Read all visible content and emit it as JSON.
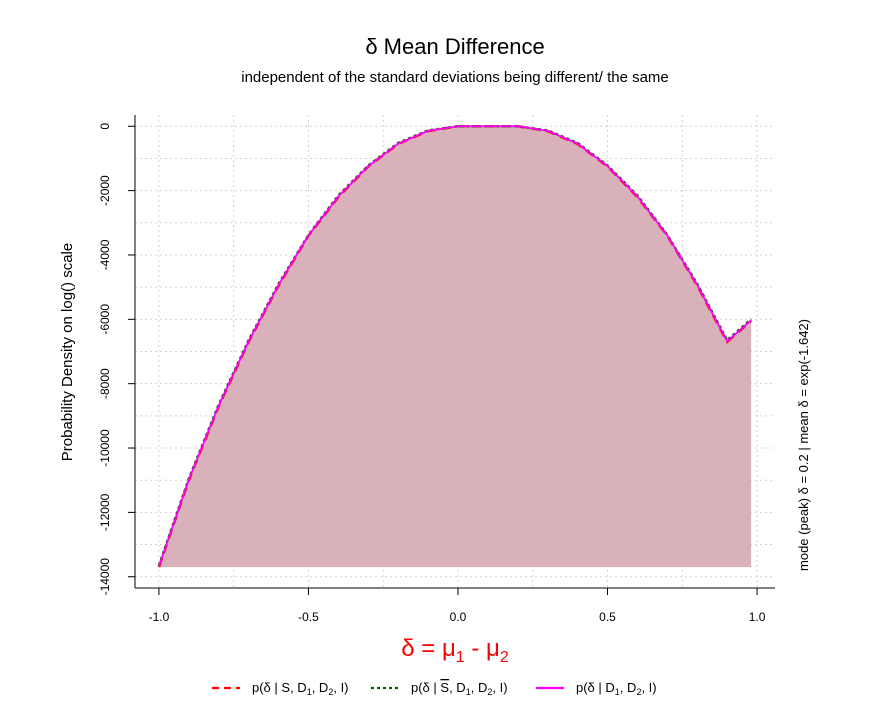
{
  "chart_data": {
    "type": "area",
    "title": "δ Mean Difference",
    "subtitle": "independent of the standard deviations being different/ the same",
    "ylabel": "Probability Density on log() scale",
    "xlabel": {
      "main": "δ = μ",
      "sub1": "1",
      "mid": " - μ",
      "sub2": "2"
    },
    "side_note": "mode (peak) δ = 0.2  |  mean δ = exp(-1.642)",
    "xlim": [
      -1.08,
      1.06
    ],
    "ylim": [
      -14350,
      350
    ],
    "x_ticks": [
      -1.0,
      -0.5,
      0.0,
      0.5,
      1.0
    ],
    "x_tick_labels": [
      "-1.0",
      "-0.5",
      "0.0",
      "0.5",
      "1.0"
    ],
    "y_ticks": [
      -14000,
      -12000,
      -10000,
      -8000,
      -6000,
      -4000,
      -2000,
      0
    ],
    "y_tick_labels": [
      "-14000",
      "-12000",
      "-10000",
      "-8000",
      "-6000",
      "-4000",
      "-2000",
      "0"
    ],
    "grid": true,
    "fill_color": "#d9b1bb",
    "fill_baseline": -13700,
    "x": [
      -1.0,
      -0.9,
      -0.8,
      -0.7,
      -0.6,
      -0.5,
      -0.4,
      -0.3,
      -0.2,
      -0.1,
      0.0,
      0.1,
      0.2,
      0.3,
      0.4,
      0.5,
      0.6,
      0.7,
      0.8,
      0.9,
      0.98
    ],
    "series": [
      {
        "name": "p(δ | S, D1, D2, I)",
        "color": "#ff0000",
        "style": "dashed",
        "values": [
          -13700,
          -11000,
          -8700,
          -6700,
          -4950,
          -3400,
          -2200,
          -1250,
          -550,
          -150,
          0,
          0,
          0,
          -150,
          -550,
          -1250,
          -2200,
          -3400,
          -4950,
          -6700,
          -6050
        ]
      },
      {
        "name": "p(δ | S̄, D1, D2, I)",
        "color": "#006400",
        "style": "dotted",
        "values": [
          -13650,
          -10950,
          -8650,
          -6650,
          -4900,
          -3380,
          -2150,
          -1220,
          -520,
          -130,
          0,
          0,
          0,
          -130,
          -520,
          -1220,
          -2150,
          -3380,
          -4900,
          -6650,
          -6000
        ]
      },
      {
        "name": "p(δ | D1, D2, I)",
        "color": "#ff00ff",
        "style": "solid",
        "values": [
          -13680,
          -10980,
          -8680,
          -6680,
          -4930,
          -3390,
          -2180,
          -1240,
          -540,
          -140,
          0,
          0,
          0,
          -140,
          -540,
          -1240,
          -2180,
          -3390,
          -4930,
          -6680,
          -6030
        ]
      }
    ],
    "legend": {
      "position": "bottom",
      "entries": [
        {
          "pre": "p(δ | S, D",
          "s1": "1",
          "mid": ", D",
          "s2": "2",
          "post": ", I)",
          "overline": false
        },
        {
          "pre": "p(δ | S, D",
          "s1": "1",
          "mid": ", D",
          "s2": "2",
          "post": ", I)",
          "overline": true
        },
        {
          "pre": "p(δ | D",
          "s1": "1",
          "mid": ", D",
          "s2": "2",
          "post": ", I)",
          "overline": false
        }
      ]
    }
  }
}
